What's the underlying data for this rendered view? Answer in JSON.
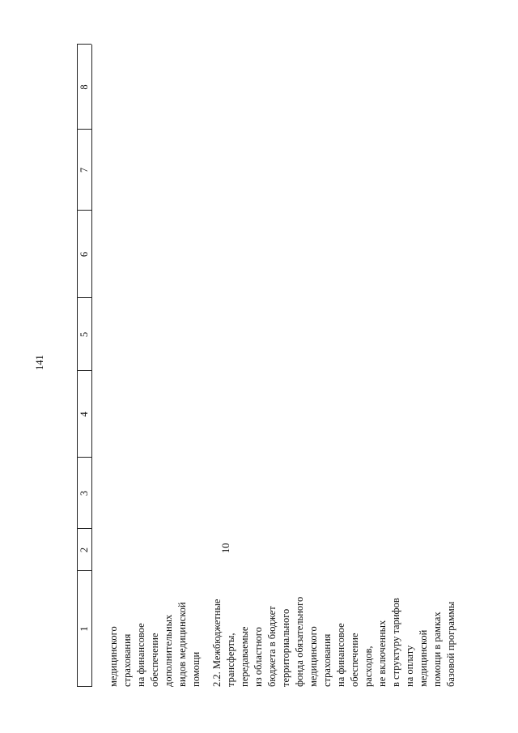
{
  "header": {
    "page_number": "141"
  },
  "table": {
    "columns": [
      "1",
      "2",
      "3",
      "4",
      "5",
      "6",
      "7",
      "8"
    ],
    "rows": [
      {
        "lines": [
          "медицинского",
          "страхования",
          "на финансовое",
          "обеспечение",
          "дополнительных",
          "видов медицинской",
          "помощи"
        ]
      },
      {
        "lines": [
          "2.2. Межбюджетные",
          "трансферты,",
          "передаваемые",
          "из областного",
          "бюджета в бюджет",
          "территориального",
          "фонда обязательного",
          "медицинского",
          "страхования",
          "на финансовое",
          "обеспечение",
          "расходов,",
          "не включенных",
          "в структуру тарифов",
          "на оплату",
          "медицинской",
          "помощи в рамках",
          "базовой программы"
        ],
        "code": "10"
      }
    ]
  }
}
